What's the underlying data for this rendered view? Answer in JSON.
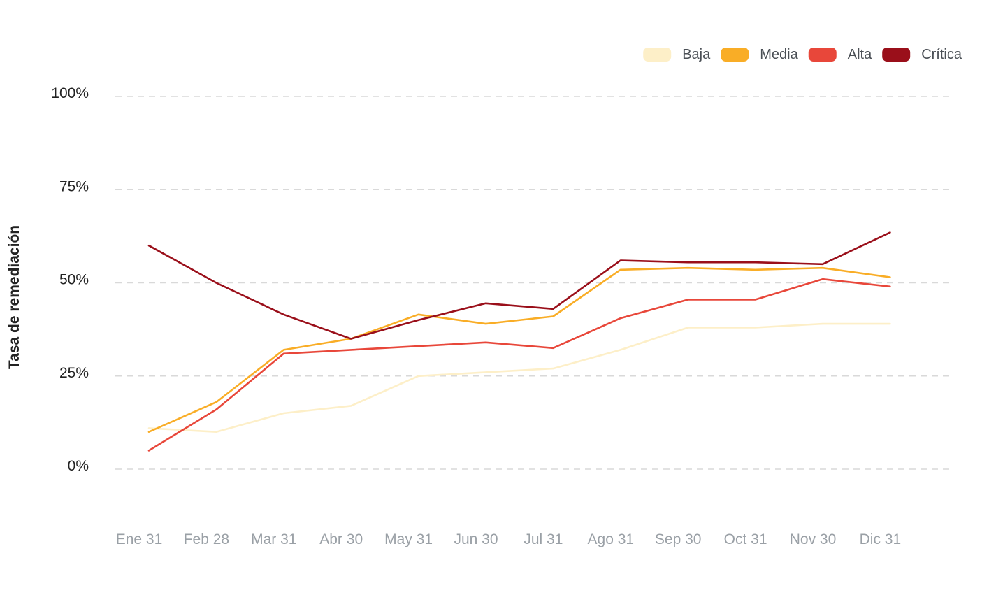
{
  "chart_data": {
    "type": "line",
    "title": "",
    "xlabel": "",
    "ylabel": "Tasa de remediación",
    "ylim": [
      0,
      100
    ],
    "y_ticks": [
      0,
      25,
      50,
      75,
      100
    ],
    "y_tick_labels": [
      "0%",
      "25%",
      "50%",
      "75%",
      "100%"
    ],
    "categories": [
      "Ene 31",
      "Feb 28",
      "Mar 31",
      "Abr 30",
      "May 31",
      "Jun 30",
      "Jul 31",
      "Ago 31",
      "Sep 30",
      "Oct 31",
      "Nov 30",
      "Dic 31"
    ],
    "grid": true,
    "legend_position": "top-right",
    "series": [
      {
        "name": "Baja",
        "color": "#fdefc8",
        "values": [
          11,
          10,
          15,
          17,
          25,
          26,
          27,
          32,
          38,
          38,
          39,
          39
        ]
      },
      {
        "name": "Media",
        "color": "#f9ad26",
        "values": [
          10,
          18,
          32,
          35,
          41.5,
          39,
          41,
          53.5,
          54,
          53.5,
          54,
          51.5
        ]
      },
      {
        "name": "Alta",
        "color": "#e8473a",
        "values": [
          5,
          16,
          31,
          32,
          33,
          34,
          32.5,
          40.5,
          45.5,
          45.5,
          51,
          49
        ]
      },
      {
        "name": "Crítica",
        "color": "#9a0f1a",
        "values": [
          60,
          50,
          41.5,
          35,
          40,
          44.5,
          43,
          56,
          55.5,
          55.5,
          55,
          63.5
        ]
      }
    ]
  }
}
